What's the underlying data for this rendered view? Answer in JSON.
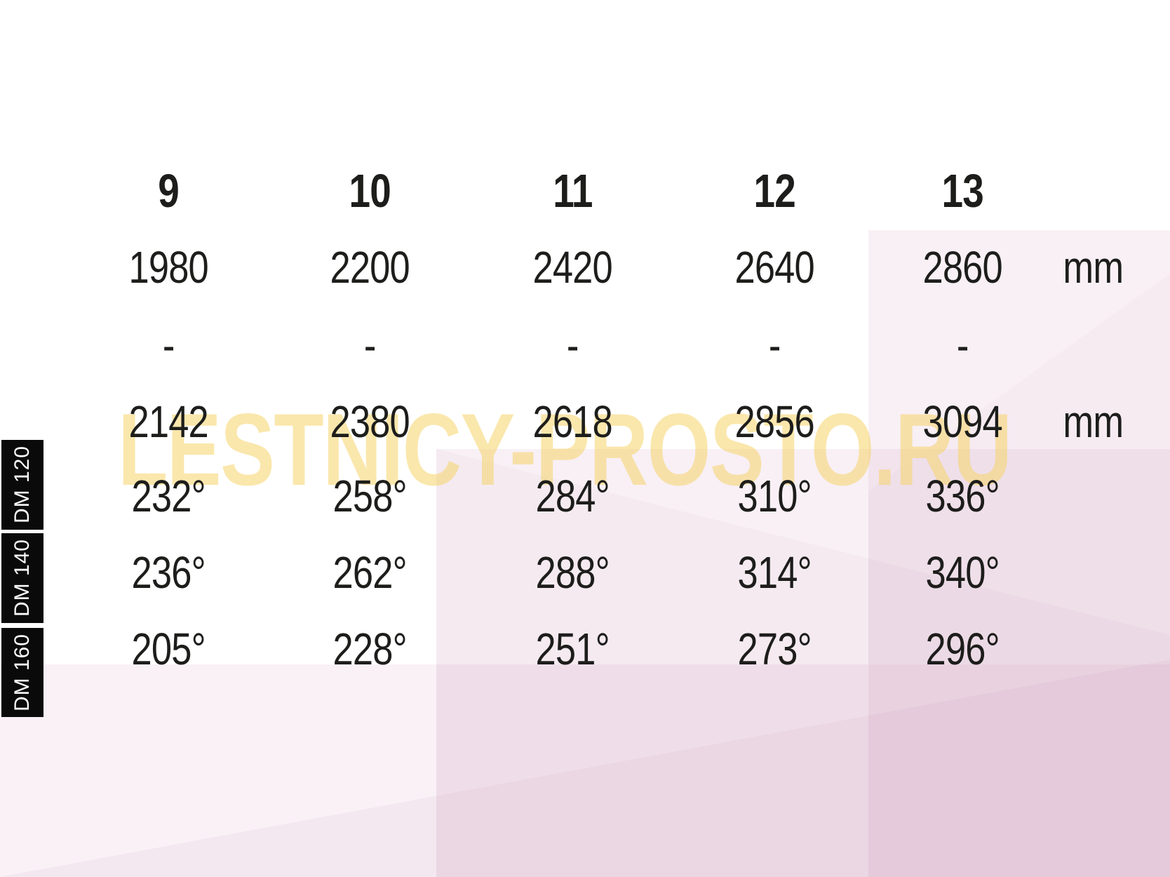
{
  "chart_data": {
    "type": "table",
    "columns": [
      "9",
      "10",
      "11",
      "12",
      "13"
    ],
    "rows": [
      {
        "label": "",
        "unit": "mm",
        "values": [
          "1980",
          "2200",
          "2420",
          "2640",
          "2860"
        ]
      },
      {
        "label": "",
        "unit": "",
        "values": [
          "-",
          "-",
          "-",
          "-",
          "-"
        ]
      },
      {
        "label": "",
        "unit": "mm",
        "values": [
          "2142",
          "2380",
          "2618",
          "2856",
          "3094"
        ]
      },
      {
        "label": "DM 120",
        "unit": "",
        "values": [
          "232°",
          "258°",
          "284°",
          "310°",
          "336°"
        ]
      },
      {
        "label": "DM 140",
        "unit": "",
        "values": [
          "236°",
          "262°",
          "288°",
          "314°",
          "340°"
        ]
      },
      {
        "label": "DM 160",
        "unit": "",
        "values": [
          "205°",
          "228°",
          "251°",
          "273°",
          "296°"
        ]
      }
    ],
    "side_labels": [
      "DM 120",
      "DM 140",
      "DM 160"
    ],
    "watermark": "LESTNICY-PROSTO.RU",
    "layout_hints": {
      "grid": "off",
      "legend": "none"
    }
  },
  "colors": {
    "text": "#1d1d1b",
    "side-label-bg": "#0a0a0a",
    "side-label-text": "#ffffff",
    "watermark-yellow": "#f6d468",
    "pink-tint": "#f8edf5"
  }
}
